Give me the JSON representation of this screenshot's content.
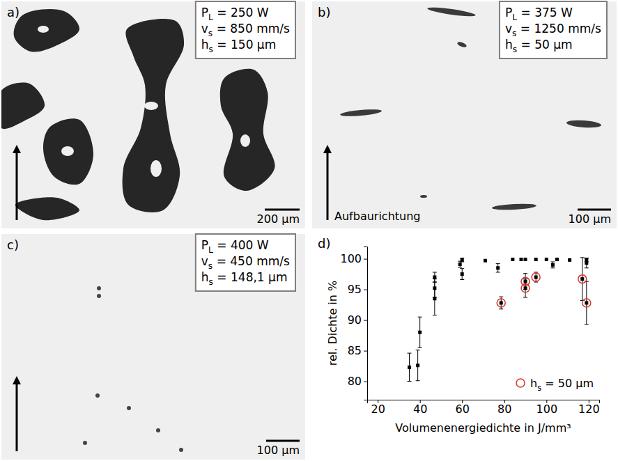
{
  "panels": [
    {
      "letter": "a)",
      "parameters": [
        "PL = 250 W",
        "vs = 850 mm/s",
        "hs = 150 µm"
      ],
      "scale_bar": "200 µm"
    },
    {
      "letter": "b)",
      "parameters": [
        "PL = 375 W",
        "vs = 1250 mm/s",
        "hs = 50 µm"
      ],
      "scale_bar": "100 µm",
      "arrow_label": "Aufbaurichtung"
    },
    {
      "letter": "c)",
      "parameters": [
        "PL = 400 W",
        "vs = 450 mm/s",
        "hs = 148,1 µm"
      ],
      "scale_bar": "100 µm"
    }
  ],
  "chart_data": {
    "type": "scatter",
    "letter": "d)",
    "x_label": "Volumenenergiedichte in J/mm³",
    "y_label": "rel. Dichte in %",
    "xlim": [
      15,
      125
    ],
    "xticks": [
      20,
      40,
      60,
      80,
      100,
      120
    ],
    "ylim": [
      77,
      102
    ],
    "yticks": [
      80,
      85,
      90,
      95,
      100
    ],
    "legend": "bottom-right",
    "series": [
      {
        "color": "#000000",
        "marker": "square",
        "x": [
          35,
          39,
          40,
          47,
          47,
          47,
          59,
          60,
          60,
          71,
          77,
          78.5,
          84,
          88,
          90,
          90,
          90,
          95,
          95,
          100,
          103,
          105,
          111,
          117,
          119,
          119,
          119
        ],
        "values": [
          82.3,
          82.6,
          88,
          97,
          95.2,
          93.5,
          99.1,
          97.5,
          99.8,
          99.7,
          98.5,
          92.8,
          99.9,
          99.9,
          96.3,
          95.2,
          99.9,
          97,
          99.9,
          99.9,
          99,
          99.9,
          99.8,
          96.7,
          92.8,
          99.8,
          99.3
        ],
        "errors": [
          2.3,
          2.5,
          2.5,
          0.8,
          1.5,
          2.7,
          0.5,
          0.9,
          0.3,
          null,
          0.7,
          1,
          null,
          null,
          1.3,
          1.5,
          null,
          0.8,
          null,
          null,
          0.5,
          null,
          null,
          3.5,
          3.5,
          0.3,
          0.8
        ]
      },
      {
        "name": "hs = 50 µm",
        "color": "#d9342b",
        "marker": "circle",
        "x": [
          78.5,
          90,
          90,
          95,
          117,
          119
        ],
        "values": [
          92.8,
          96.3,
          95.2,
          97,
          96.7,
          92.8
        ]
      }
    ]
  }
}
